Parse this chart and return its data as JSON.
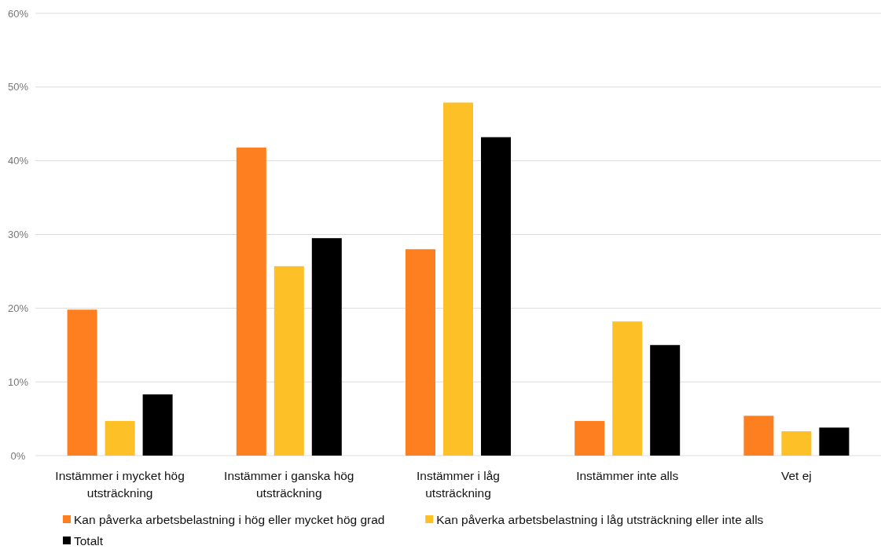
{
  "chart_data": {
    "type": "bar",
    "categories": [
      "Instämmer i mycket hög utsträckning",
      "Instämmer i ganska hög utsträckning",
      "Instämmer i låg utsträckning",
      "Instämmer inte alls",
      "Vet ej"
    ],
    "series": [
      {
        "name": "Kan påverka arbetsbelastning i hög eller mycket hög grad",
        "color": "#fd7f20",
        "values": [
          19.8,
          41.8,
          28.0,
          4.7,
          5.4
        ]
      },
      {
        "name": "Kan påverka arbetsbelastning i låg utsträckning eller inte alls",
        "color": "#fdc026",
        "values": [
          4.7,
          25.7,
          47.9,
          18.2,
          3.3
        ]
      },
      {
        "name": "Totalt",
        "color": "#000000",
        "values": [
          8.3,
          29.5,
          43.2,
          15.0,
          3.8
        ]
      }
    ],
    "ylim": [
      0,
      60
    ],
    "yticks": [
      {
        "value": 0,
        "label": "0%"
      },
      {
        "value": 10,
        "label": "10%"
      },
      {
        "value": 20,
        "label": "20%"
      },
      {
        "value": 30,
        "label": "30%"
      },
      {
        "value": 40,
        "label": "40%"
      },
      {
        "value": 50,
        "label": "50%"
      },
      {
        "value": 60,
        "label": "60%"
      }
    ],
    "grid": "y",
    "legend": "bottom"
  }
}
